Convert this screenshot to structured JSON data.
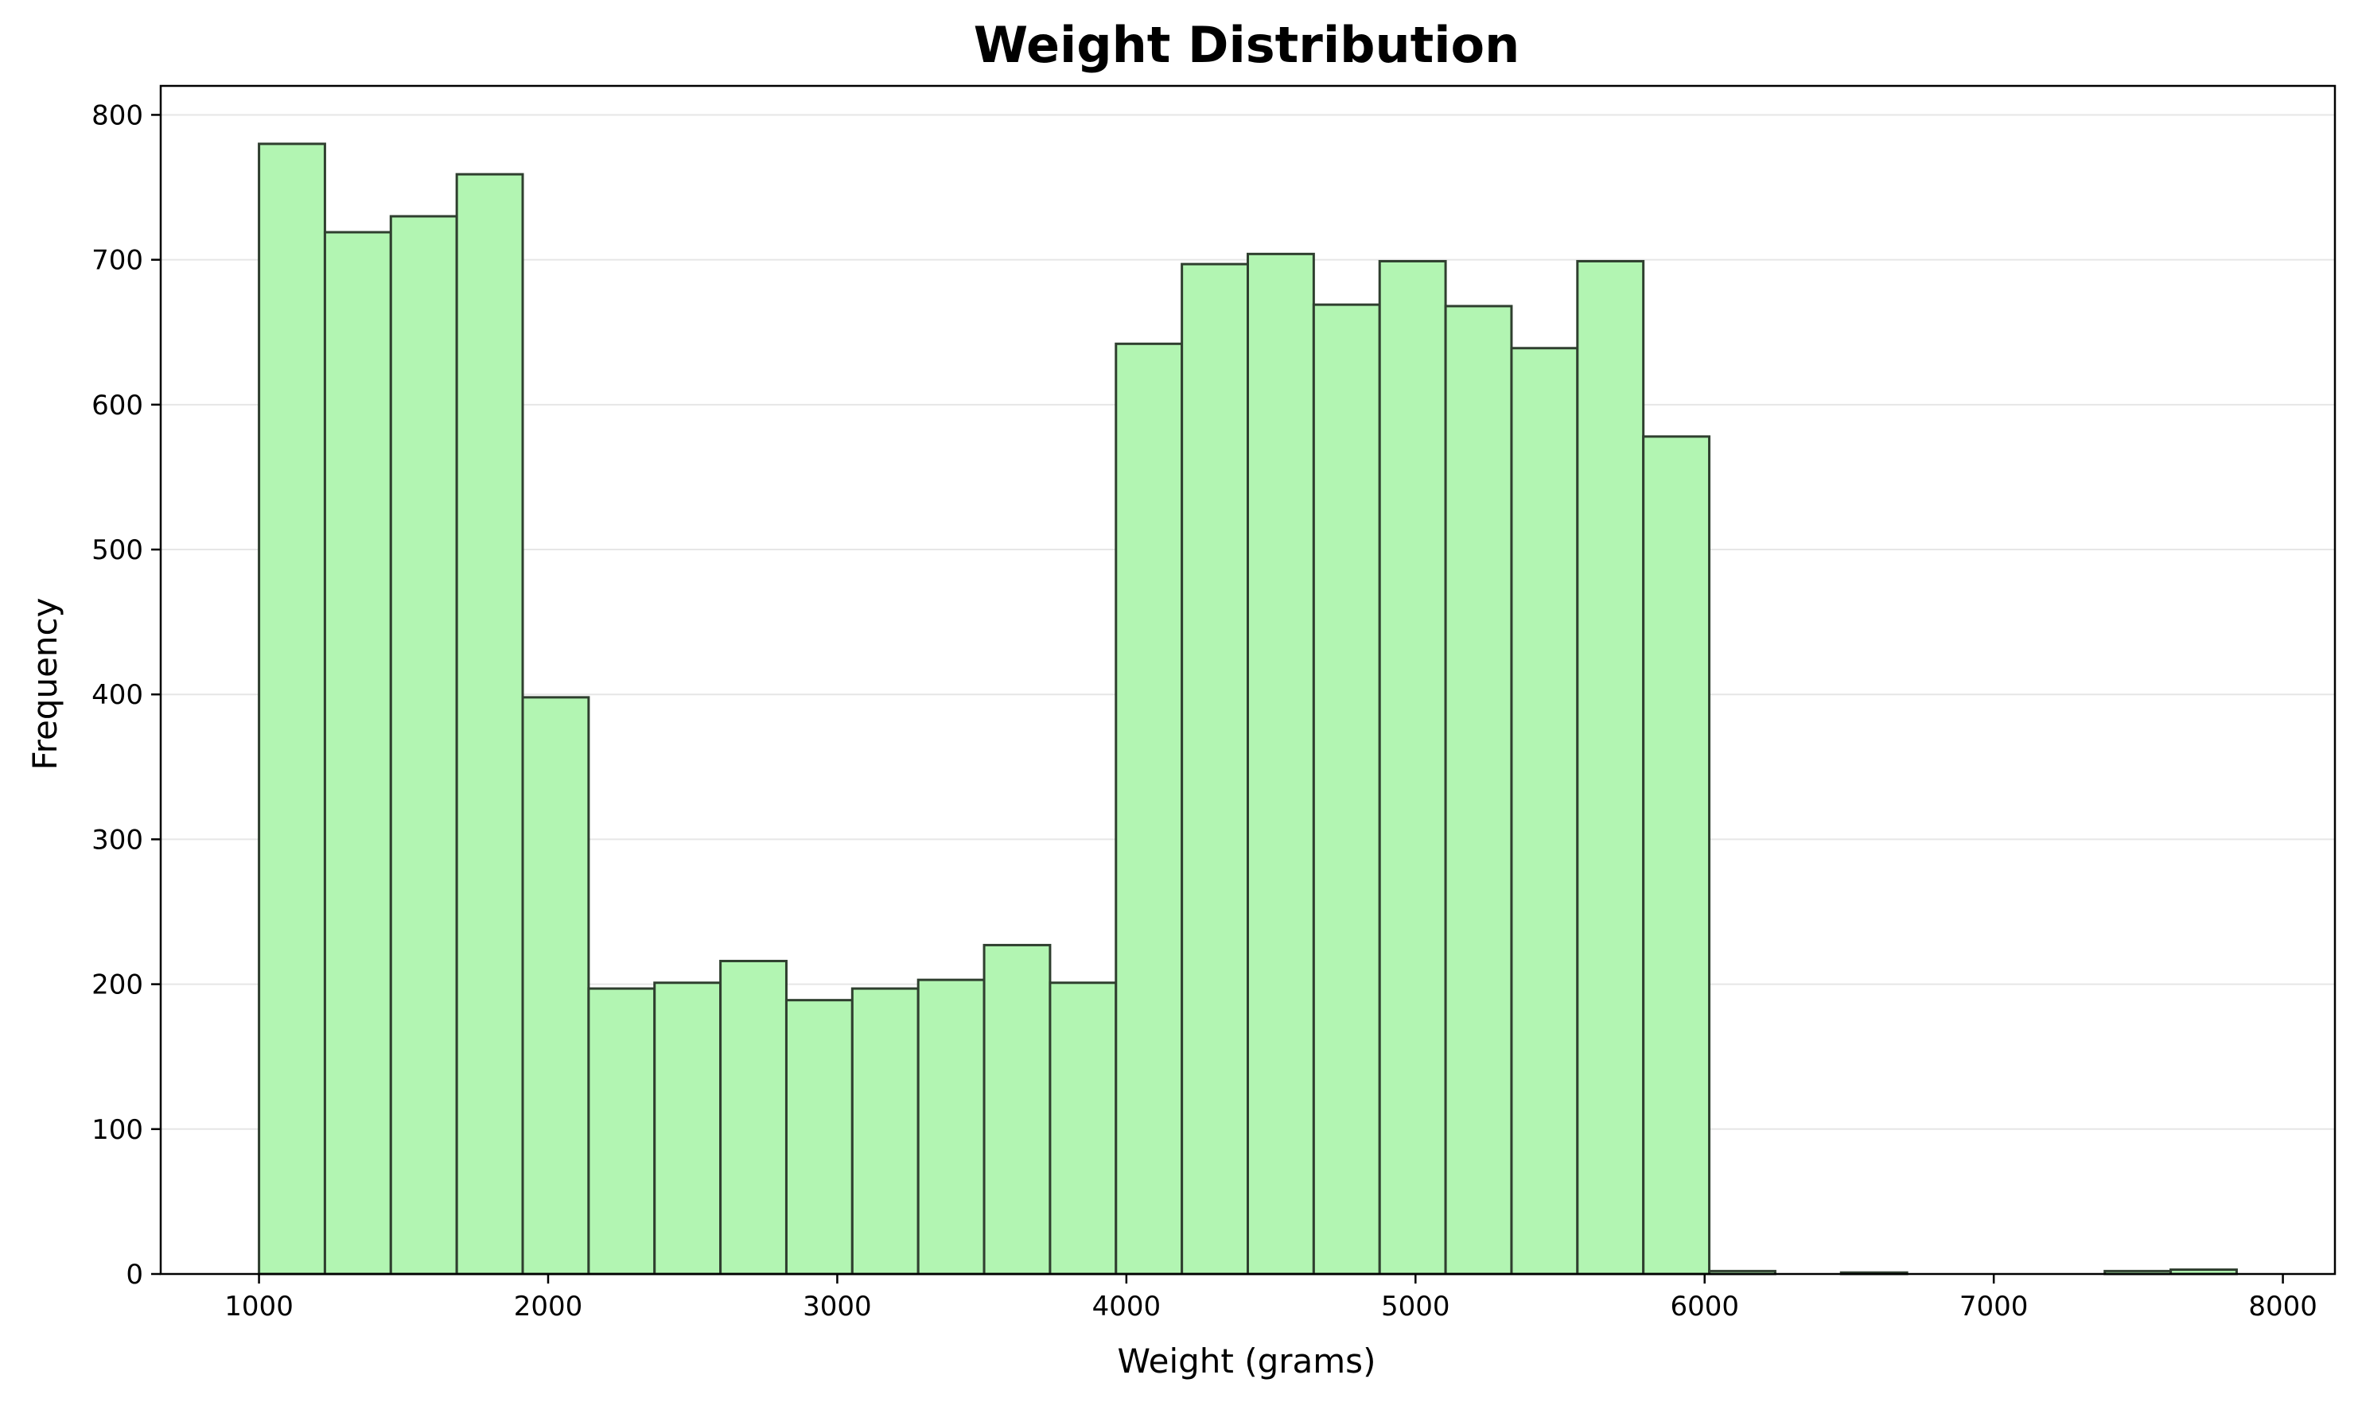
{
  "chart_data": {
    "type": "bar",
    "subtype": "histogram",
    "title": "Weight Distribution",
    "xlabel": "Weight (grams)",
    "ylabel": "Frequency",
    "xlim": [
      660,
      8180
    ],
    "ylim": [
      0,
      820
    ],
    "x_ticks": [
      1000,
      2000,
      3000,
      4000,
      5000,
      6000,
      7000,
      8000
    ],
    "y_ticks": [
      0,
      100,
      200,
      300,
      400,
      500,
      600,
      700,
      800
    ],
    "grid": {
      "axis": "y",
      "on": true
    },
    "bar_color": "#b2f5b2",
    "edge_color": "#2f3f2f",
    "grid_color": "#e6e6e6",
    "bins": [
      {
        "x0": 1000,
        "x1": 1228,
        "value": 780
      },
      {
        "x0": 1228,
        "x1": 1456,
        "value": 719
      },
      {
        "x0": 1456,
        "x1": 1684,
        "value": 730
      },
      {
        "x0": 1684,
        "x1": 1912,
        "value": 759
      },
      {
        "x0": 1912,
        "x1": 2140,
        "value": 398
      },
      {
        "x0": 2140,
        "x1": 2368,
        "value": 197
      },
      {
        "x0": 2368,
        "x1": 2596,
        "value": 201
      },
      {
        "x0": 2596,
        "x1": 2824,
        "value": 216
      },
      {
        "x0": 2824,
        "x1": 3052,
        "value": 189
      },
      {
        "x0": 3052,
        "x1": 3280,
        "value": 197
      },
      {
        "x0": 3280,
        "x1": 3508,
        "value": 203
      },
      {
        "x0": 3508,
        "x1": 3736,
        "value": 227
      },
      {
        "x0": 3736,
        "x1": 3964,
        "value": 201
      },
      {
        "x0": 3964,
        "x1": 4192,
        "value": 642
      },
      {
        "x0": 4192,
        "x1": 4420,
        "value": 697
      },
      {
        "x0": 4420,
        "x1": 4648,
        "value": 704
      },
      {
        "x0": 4648,
        "x1": 4876,
        "value": 669
      },
      {
        "x0": 4876,
        "x1": 5104,
        "value": 699
      },
      {
        "x0": 5104,
        "x1": 5332,
        "value": 668
      },
      {
        "x0": 5332,
        "x1": 5560,
        "value": 639
      },
      {
        "x0": 5560,
        "x1": 5788,
        "value": 699
      },
      {
        "x0": 5788,
        "x1": 6016,
        "value": 578
      },
      {
        "x0": 6016,
        "x1": 6244,
        "value": 2
      },
      {
        "x0": 6244,
        "x1": 6472,
        "value": 0
      },
      {
        "x0": 6472,
        "x1": 6700,
        "value": 1
      },
      {
        "x0": 6700,
        "x1": 6928,
        "value": 0
      },
      {
        "x0": 6928,
        "x1": 7156,
        "value": 0
      },
      {
        "x0": 7156,
        "x1": 7384,
        "value": 0
      },
      {
        "x0": 7384,
        "x1": 7612,
        "value": 2
      },
      {
        "x0": 7612,
        "x1": 7840,
        "value": 3
      }
    ]
  }
}
